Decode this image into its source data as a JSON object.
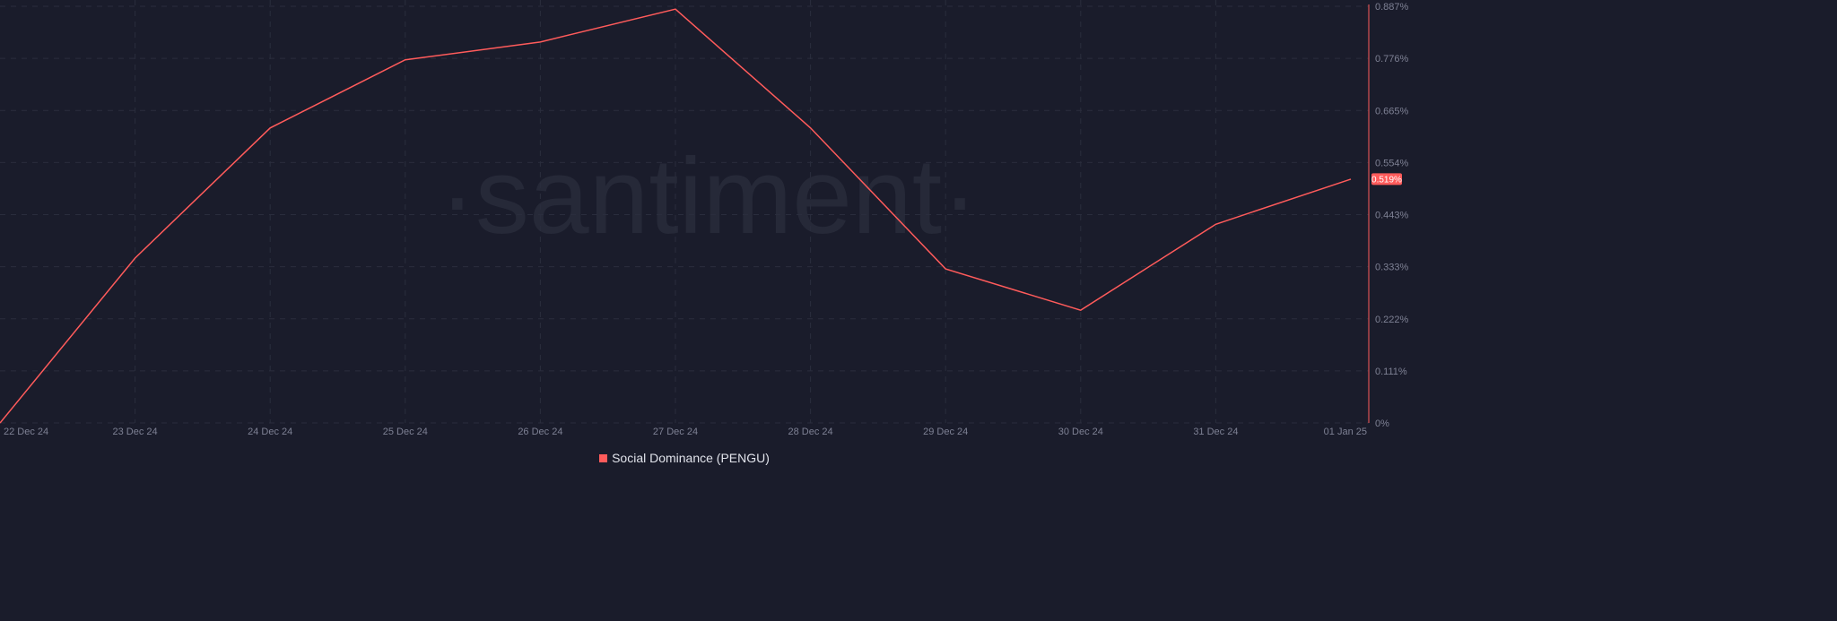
{
  "watermark": "·santiment·",
  "chart_data": {
    "type": "line",
    "title": "",
    "xlabel": "",
    "ylabel": "",
    "x": [
      "22 Dec 24",
      "23 Dec 24",
      "24 Dec 24",
      "25 Dec 24",
      "26 Dec 24",
      "27 Dec 24",
      "28 Dec 24",
      "29 Dec 24",
      "30 Dec 24",
      "31 Dec 24",
      "01 Jan 25"
    ],
    "series": [
      {
        "name": "Social Dominance (PENGU)",
        "color": "#ff5b5b",
        "values": [
          0.0,
          0.351,
          0.628,
          0.773,
          0.811,
          0.881,
          0.628,
          0.328,
          0.24,
          0.423,
          0.519
        ]
      }
    ],
    "ylim": [
      0,
      0.887
    ],
    "yticks": [
      "0%",
      "0.111%",
      "0.222%",
      "0.333%",
      "0.443%",
      "0.554%",
      "0.665%",
      "0.776%",
      "0.887%"
    ],
    "last_value_label": "0.519%",
    "y_axis_position": "right",
    "grid": true,
    "legend_position": "bottom"
  }
}
